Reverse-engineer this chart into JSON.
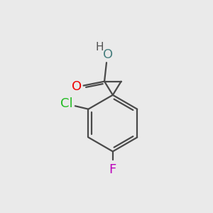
{
  "background_color": "#EAEAEA",
  "bond_color": "#4a4a4a",
  "bond_width": 1.6,
  "atom_colors": {
    "O_red": "#EE0000",
    "O_teal": "#4a8080",
    "Cl": "#22BB22",
    "F": "#BB00BB",
    "H": "#505050",
    "C": "#4a4a4a"
  },
  "font_size_large": 13,
  "font_size_small": 11
}
